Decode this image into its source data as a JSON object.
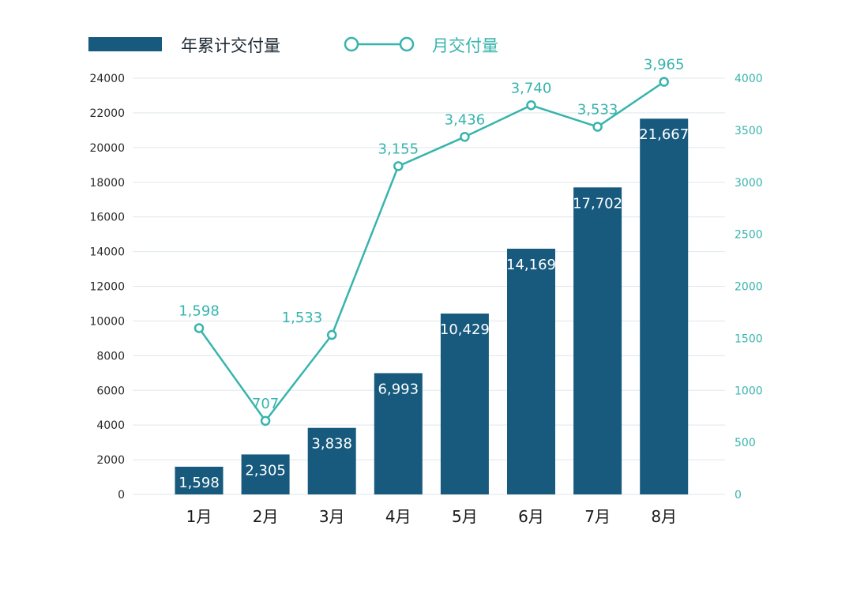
{
  "colors": {
    "bar": "#175a7e",
    "line": "#37b4ad",
    "grid": "#dfe7ec",
    "axis_left_text": "#2b2b2b",
    "axis_right_text": "#37b4ad"
  },
  "legend": {
    "bar_label": "年累计交付量",
    "line_label": "月交付量"
  },
  "chart_data": {
    "type": "bar+line",
    "categories": [
      "1月",
      "2月",
      "3月",
      "4月",
      "5月",
      "6月",
      "7月",
      "8月"
    ],
    "series": [
      {
        "name": "年累计交付量",
        "type": "bar",
        "axis": "left",
        "values": [
          1598,
          2305,
          3838,
          6993,
          10429,
          14169,
          17702,
          21667
        ],
        "labels": [
          "1,598",
          "2,305",
          "3,838",
          "6,993",
          "10,429",
          "14,169",
          "17,702",
          "21,667"
        ]
      },
      {
        "name": "月交付量",
        "type": "line",
        "axis": "right",
        "values": [
          1598,
          707,
          1533,
          3155,
          3436,
          3740,
          3533,
          3965
        ],
        "labels": [
          "1,598",
          "707",
          "1,533",
          "3,155",
          "3,436",
          "3,740",
          "3,533",
          "3,965"
        ]
      }
    ],
    "y_left": {
      "range": [
        0,
        24000
      ],
      "ticks": [
        "0",
        "2000",
        "4000",
        "6000",
        "8000",
        "10000",
        "12000",
        "14000",
        "16000",
        "18000",
        "20000",
        "22000",
        "24000"
      ]
    },
    "y_right": {
      "range": [
        0,
        4000
      ],
      "ticks": [
        "0",
        "500",
        "1000",
        "1500",
        "2000",
        "2500",
        "3000",
        "3500",
        "4000"
      ]
    },
    "grid": true,
    "legend_position": "top-left"
  }
}
